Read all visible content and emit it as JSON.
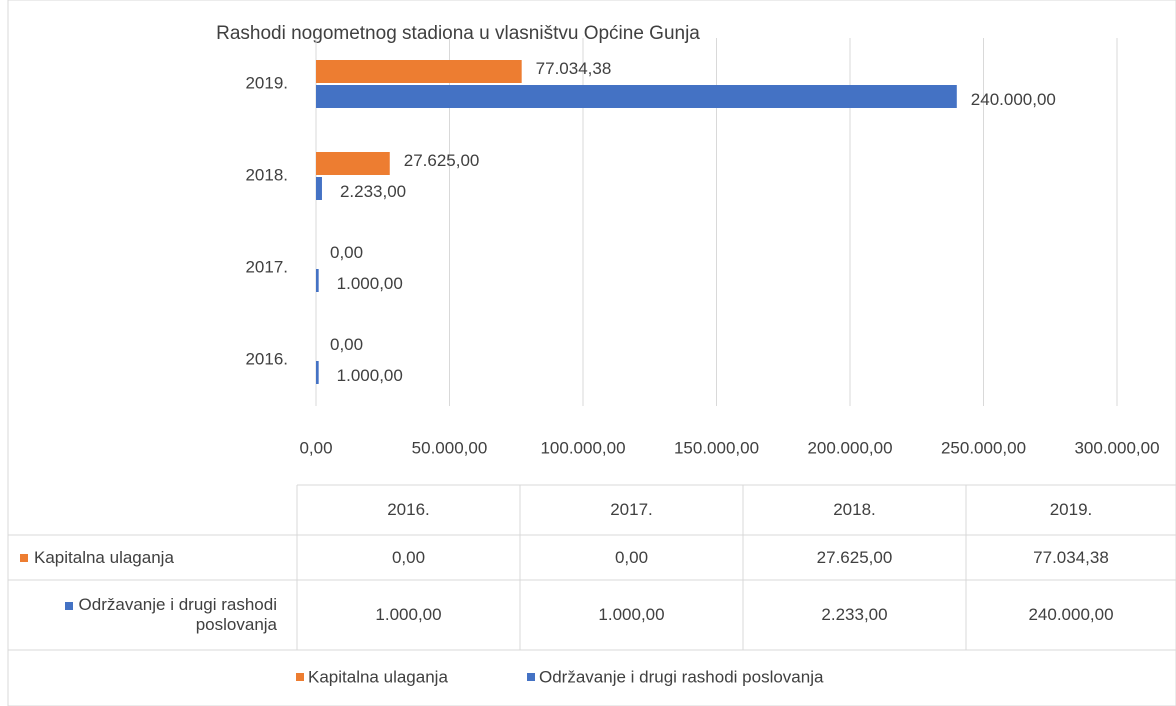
{
  "chart_data": {
    "type": "barh",
    "title": "Rashodi nogometnog stadiona u vlasništvu Općine Gunja",
    "categories": [
      "2016.",
      "2017.",
      "2018.",
      "2019."
    ],
    "series": [
      {
        "name": "Kapitalna ulaganja",
        "color": "#ED7D31",
        "values": [
          0,
          0,
          27625,
          77034.38
        ],
        "value_labels": [
          "0,00",
          "0,00",
          "27.625,00",
          "77.034,38"
        ]
      },
      {
        "name": "Održavanje i drugi rashodi poslovanja",
        "color": "#4472C4",
        "values": [
          1000,
          1000,
          2233,
          240000
        ],
        "value_labels": [
          "1.000,00",
          "1.000,00",
          "2.233,00",
          "240.000,00"
        ]
      }
    ],
    "xlim": [
      0,
      300000
    ],
    "xticks": [
      {
        "value": 0,
        "label": "0,00"
      },
      {
        "value": 50000,
        "label": "50.000,00"
      },
      {
        "value": 100000,
        "label": "100.000,00"
      },
      {
        "value": 150000,
        "label": "150.000,00"
      },
      {
        "value": 200000,
        "label": "200.000,00"
      },
      {
        "value": 250000,
        "label": "250.000,00"
      },
      {
        "value": 300000,
        "label": "300.000,00"
      }
    ],
    "grid": true,
    "legend": "bottom"
  }
}
